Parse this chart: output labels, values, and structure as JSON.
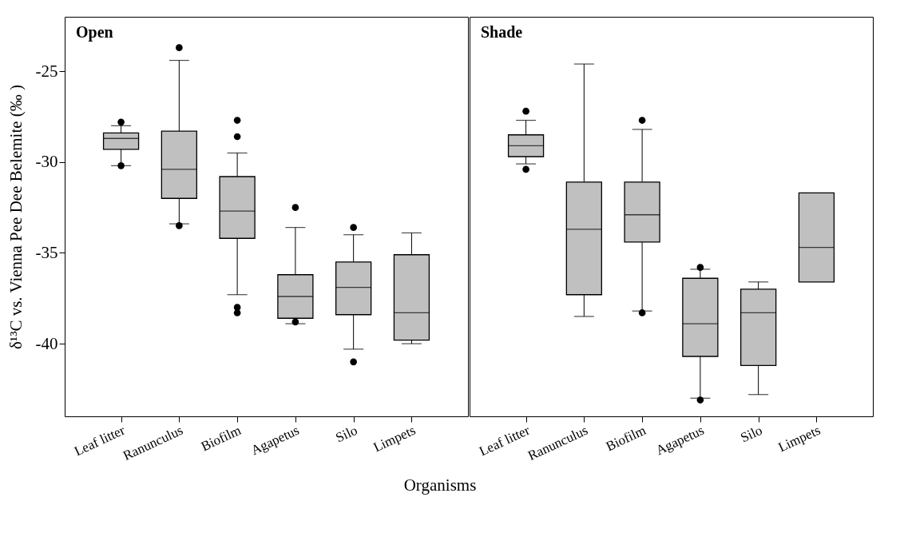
{
  "chart_data": [
    {
      "type": "box",
      "title": "Open",
      "xlabel": "Organisms",
      "ylabel": "δ¹³C vs. Vienna Pee Dee Belemite (‰ )",
      "categories": [
        "Leaf litter",
        "Ranunculus",
        "Biofilm",
        "Agapetus",
        "Silo",
        "Limpets"
      ],
      "ylim": [
        -44,
        -22
      ],
      "yticks": [
        -25,
        -30,
        -35,
        -40
      ],
      "marker": "circle",
      "series": [
        {
          "color": "#c0c0c0",
          "boxes": [
            {
              "low": -30.2,
              "q1": -29.3,
              "median": -28.7,
              "q3": -28.4,
              "high": -28.0,
              "outliers": [
                -27.8,
                -30.2
              ]
            },
            {
              "low": -33.4,
              "q1": -32.0,
              "median": -30.4,
              "q3": -28.3,
              "high": -24.4,
              "outliers": [
                -23.7,
                -33.5
              ]
            },
            {
              "low": -37.3,
              "q1": -34.2,
              "median": -32.7,
              "q3": -30.8,
              "high": -29.5,
              "outliers": [
                -27.7,
                -28.6,
                -38.0,
                -38.3
              ]
            },
            {
              "low": -38.9,
              "q1": -38.6,
              "median": -37.4,
              "q3": -36.2,
              "high": -33.6,
              "outliers": [
                -32.5,
                -38.8
              ]
            },
            {
              "low": -40.3,
              "q1": -38.4,
              "median": -36.9,
              "q3": -35.5,
              "high": -34.0,
              "outliers": [
                -33.6,
                -41.0
              ]
            },
            {
              "low": -40.0,
              "q1": -39.8,
              "median": -38.3,
              "q3": -35.1,
              "high": -33.9
            }
          ]
        }
      ]
    },
    {
      "type": "box",
      "title": "Shade",
      "categories": [
        "Leaf litter",
        "Ranunculus",
        "Biofilm",
        "Agapetus",
        "Silo",
        "Limpets"
      ],
      "ylim": [
        -44,
        -22
      ],
      "yticks": [
        -25,
        -30,
        -35,
        -40
      ],
      "tick_labels": "x",
      "marker": "circle",
      "series": [
        {
          "color": "#c0c0c0",
          "boxes": [
            {
              "low": -30.1,
              "q1": -29.7,
              "median": -29.1,
              "q3": -28.5,
              "high": -27.7,
              "outliers": [
                -27.2,
                -30.4
              ]
            },
            {
              "low": -38.5,
              "q1": -37.3,
              "median": -33.7,
              "q3": -31.1,
              "high": -24.6
            },
            {
              "low": -38.2,
              "q1": -34.4,
              "median": -32.9,
              "q3": -31.1,
              "high": -28.2,
              "outliers": [
                -27.7,
                -38.3
              ]
            },
            {
              "low": -43.0,
              "q1": -40.7,
              "median": -38.9,
              "q3": -36.4,
              "high": -35.9,
              "outliers": [
                -35.8,
                -43.1
              ]
            },
            {
              "low": -42.8,
              "q1": -41.2,
              "median": -38.3,
              "q3": -37.0,
              "high": -36.6
            },
            {
              "low": -36.6,
              "q1": -36.6,
              "median": -34.7,
              "q3": -31.7,
              "high": -31.7
            }
          ]
        }
      ]
    }
  ]
}
